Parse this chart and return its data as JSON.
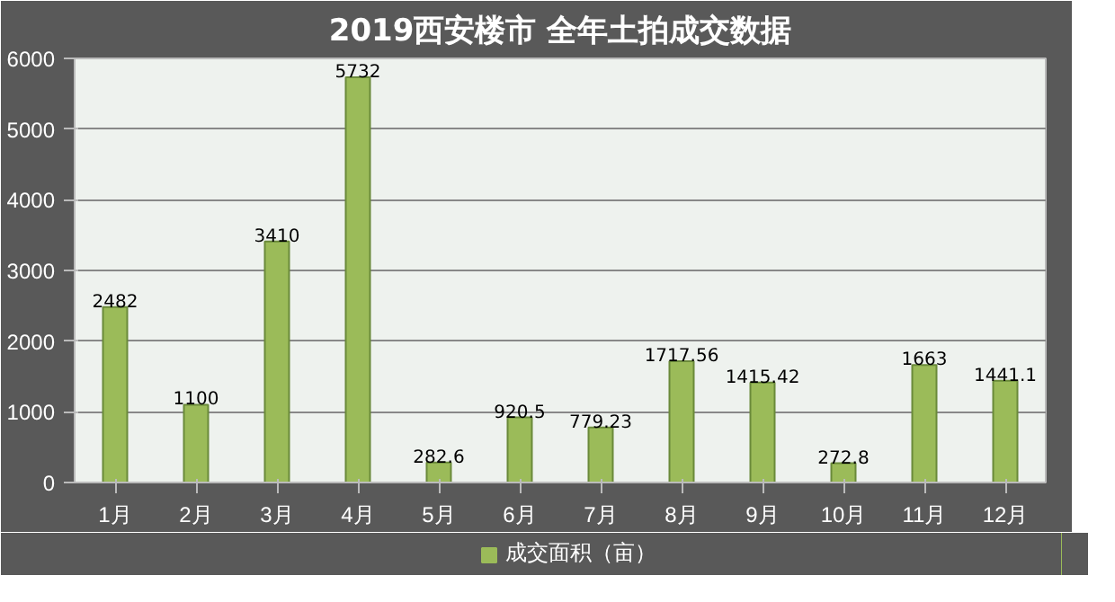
{
  "chart_data": {
    "type": "bar",
    "title": "2019西安楼市 全年土拍成交数据",
    "categories": [
      "1月",
      "2月",
      "3月",
      "4月",
      "5月",
      "6月",
      "7月",
      "8月",
      "9月",
      "10月",
      "11月",
      "12月"
    ],
    "series": [
      {
        "name": "成交面积（亩）",
        "color": "#9bbb59",
        "values": [
          2482,
          1100,
          3410,
          5732,
          282.6,
          920.5,
          779.23,
          1717.56,
          1415.42,
          272.8,
          1663,
          1441.1
        ]
      }
    ],
    "ylim": [
      0,
      6000
    ],
    "yticks": [
      0,
      1000,
      2000,
      3000,
      4000,
      5000,
      6000
    ],
    "grid": "y",
    "legend": "bottom",
    "data_labels": true
  }
}
